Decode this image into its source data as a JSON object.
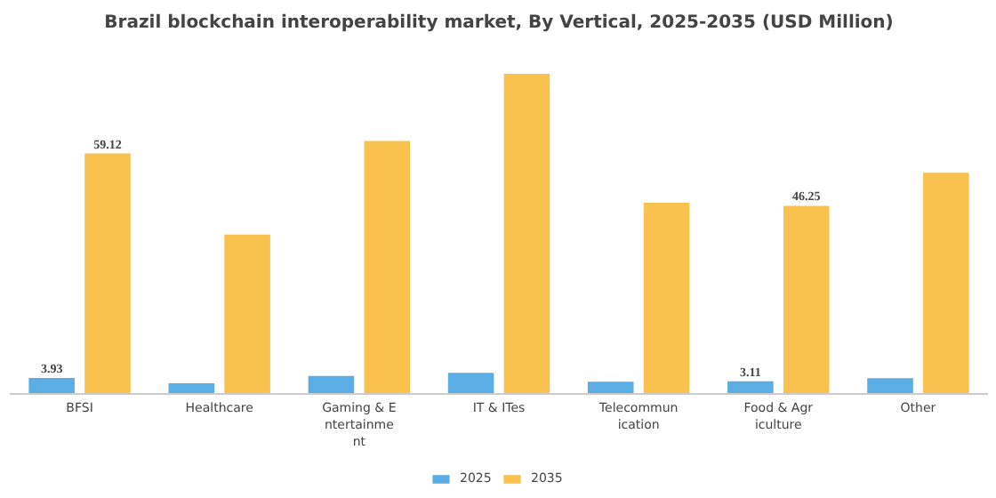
{
  "chart_data": {
    "type": "bar",
    "title": "Brazil blockchain interoperability market, By Vertical, 2025-2035 (USD Million)",
    "categories": [
      "BFSI",
      "Healthcare",
      "Gaming & E\nntertainme\nnt",
      "IT & ITes",
      "Telecommun\nication",
      "Food & Agr\niculture",
      "Other"
    ],
    "series": [
      {
        "name": "2025",
        "color": "#5aaee3",
        "values": [
          3.93,
          2.6,
          4.4,
          5.2,
          3.0,
          3.11,
          3.9
        ],
        "value_labels": [
          "3.93",
          null,
          null,
          null,
          null,
          "3.11",
          null
        ]
      },
      {
        "name": "2035",
        "color": "#f9c24f",
        "values": [
          59.12,
          39.2,
          62.2,
          78.7,
          47.0,
          46.25,
          54.4
        ],
        "value_labels": [
          "59.12",
          null,
          null,
          null,
          null,
          "46.25",
          null
        ]
      }
    ],
    "legend": "bottom"
  }
}
